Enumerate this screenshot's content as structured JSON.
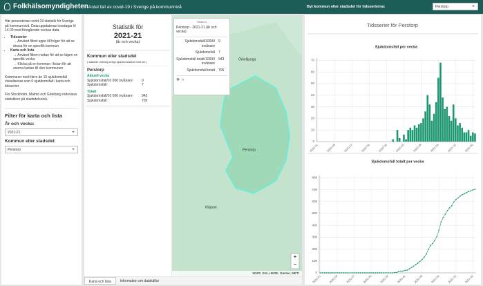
{
  "header": {
    "logo": "Folkhälsomyndigheten",
    "title": "Antal fall av covid-19 i Sverige på kommunnivå",
    "selector_label": "Byt kommun eller stadsdel för tidsserierna:",
    "selector_value": "Perstorp"
  },
  "left_panel": {
    "intro": "Här presenteras covid-19 statistik för Sverige på kommunnivå. Data uppdateras torsdagar kl 14.00 med föregående veckas data.",
    "bullets": [
      {
        "title": "Tidsserier",
        "lines": [
          "→ Använd filtret uppe till höger för att se dessa för en specifik kommun"
        ]
      },
      {
        "title": "Karta och lista",
        "lines": [
          "→ Använd filtren nedan för att se lägen en specifik vecka",
          "→ Klicka på en kommun i listan för att zooma kartan till den kommunen"
        ]
      }
    ],
    "note1": "Kommuner med färre än 15 sjukdomsfall visualiseras som 0 sjukdomsfall i karta och tidsserier.",
    "note2": "För Stockholm, Malmö och Göteborg redovisas statistiken på stadsdelsnivå.",
    "filter_title": "Filter för karta och lista",
    "week_label": "År och vecka:",
    "week_value": "2021-21",
    "municipality_label": "Kommun eller stadsdel:",
    "municipality_value": "Perstorp"
  },
  "stats_panel": {
    "heading": "Statistik för",
    "week": "2021-21",
    "week_note": "(år och vecka)",
    "list_title": "Kommun eller stadsdel",
    "list_note": "( fallande ordning enligt sjukdomsfall/10 000 inv.)",
    "item": {
      "name": "Perstorp",
      "current_label": "Aktuell vecka",
      "current": [
        [
          "Sjukdomsfall/10 000 invånare:",
          "9"
        ],
        [
          "Sjukdomsfall:",
          "7"
        ]
      ],
      "total_label": "Totalt",
      "total": [
        [
          "Sjukdomsfall/10 000 invånare:",
          "943"
        ],
        [
          "Sjukdomsfall:",
          "705"
        ]
      ]
    }
  },
  "map": {
    "labels": [
      "Örkelljunga",
      "Perstorp",
      "Klippan"
    ],
    "attribution": "SDFE, Esri, HERE, Garmin, METI",
    "popup": {
      "tag": "Vecka 1",
      "title": "Perstorp - 2021-21 (år och vecka)",
      "rows": [
        [
          "Sjukdomsfall/10000 invånare",
          "9"
        ],
        [
          "Sjukdomsfall",
          "7"
        ],
        [
          "Sjukdomsfall totalt/10000 invånare",
          "943"
        ],
        [
          "Sjukdomsfall totalt",
          "705"
        ]
      ]
    }
  },
  "tabs": [
    "Karta och lista",
    "Information om datakällor"
  ],
  "timeseries_title": "Tidsserier för Perstorp",
  "chart_data": [
    {
      "type": "bar",
      "title": "Sjukdomsfall per vecka",
      "color": "#1e9873",
      "grid": true,
      "ylim": [
        0,
        72
      ],
      "yticks": [
        0,
        10,
        20,
        30,
        40,
        50,
        60,
        70
      ],
      "categories": [
        "2020-01",
        null,
        null,
        null,
        null,
        null,
        null,
        null,
        "2020-09",
        null,
        null,
        null,
        null,
        null,
        null,
        null,
        "2020-17",
        null,
        null,
        null,
        null,
        null,
        null,
        null,
        "2020-25",
        null,
        null,
        null,
        null,
        null,
        null,
        null,
        "2020-33",
        null,
        null,
        null,
        null,
        null,
        null,
        null,
        "2020-41",
        null,
        null,
        null,
        null,
        null,
        null,
        null,
        "2020-49",
        null,
        null,
        null,
        null,
        null,
        null,
        null,
        "2021-04",
        null,
        null,
        null,
        null,
        null,
        null,
        null,
        "2021-12",
        null,
        null,
        null,
        null,
        null,
        null,
        null,
        "2021-20",
        null
      ],
      "values": [
        0,
        0,
        0,
        0,
        0,
        0,
        0,
        0,
        0,
        0,
        0,
        0,
        0,
        0,
        0,
        0,
        0,
        0,
        0,
        0,
        0,
        0,
        0,
        0,
        0,
        0,
        0,
        0,
        0,
        0,
        0,
        0,
        0,
        0,
        0,
        2,
        0,
        10,
        3,
        0,
        6,
        2,
        10,
        12,
        10,
        14,
        12,
        15,
        16,
        20,
        26,
        40,
        32,
        18,
        24,
        34,
        55,
        68,
        38,
        28,
        30,
        22,
        18,
        32,
        20,
        14,
        16,
        12,
        8,
        8,
        10,
        5,
        8,
        7
      ]
    },
    {
      "type": "line",
      "title": "Sjukdomsfall totalt per vecka",
      "color": "#1e9873",
      "grid": true,
      "ylim": [
        0,
        820
      ],
      "yticks": [
        0,
        100,
        200,
        300,
        400,
        500,
        600,
        700,
        800
      ],
      "categories": [
        "2020-01",
        null,
        null,
        null,
        null,
        null,
        null,
        null,
        "2020-09",
        null,
        null,
        null,
        null,
        null,
        null,
        null,
        "2020-17",
        null,
        null,
        null,
        null,
        null,
        null,
        null,
        "2020-25",
        null,
        null,
        null,
        null,
        null,
        null,
        null,
        "2020-33",
        null,
        null,
        null,
        null,
        null,
        null,
        null,
        "2020-41",
        null,
        null,
        null,
        null,
        null,
        null,
        null,
        "2020-49",
        null,
        null,
        null,
        null,
        null,
        null,
        null,
        "2021-04",
        null,
        null,
        null,
        null,
        null,
        null,
        null,
        "2021-12",
        null,
        null,
        null,
        null,
        null,
        null,
        null,
        "2021-20",
        null
      ],
      "values": [
        0,
        0,
        0,
        0,
        0,
        0,
        0,
        0,
        0,
        0,
        0,
        0,
        0,
        0,
        0,
        0,
        0,
        0,
        0,
        0,
        0,
        0,
        0,
        0,
        0,
        0,
        0,
        0,
        0,
        0,
        0,
        0,
        0,
        0,
        0,
        2,
        2,
        12,
        15,
        15,
        21,
        23,
        33,
        45,
        55,
        69,
        81,
        96,
        112,
        132,
        158,
        198,
        230,
        248,
        272,
        306,
        361,
        429,
        467,
        495,
        525,
        547,
        565,
        597,
        617,
        631,
        647,
        659,
        667,
        675,
        685,
        690,
        698,
        705
      ]
    }
  ]
}
